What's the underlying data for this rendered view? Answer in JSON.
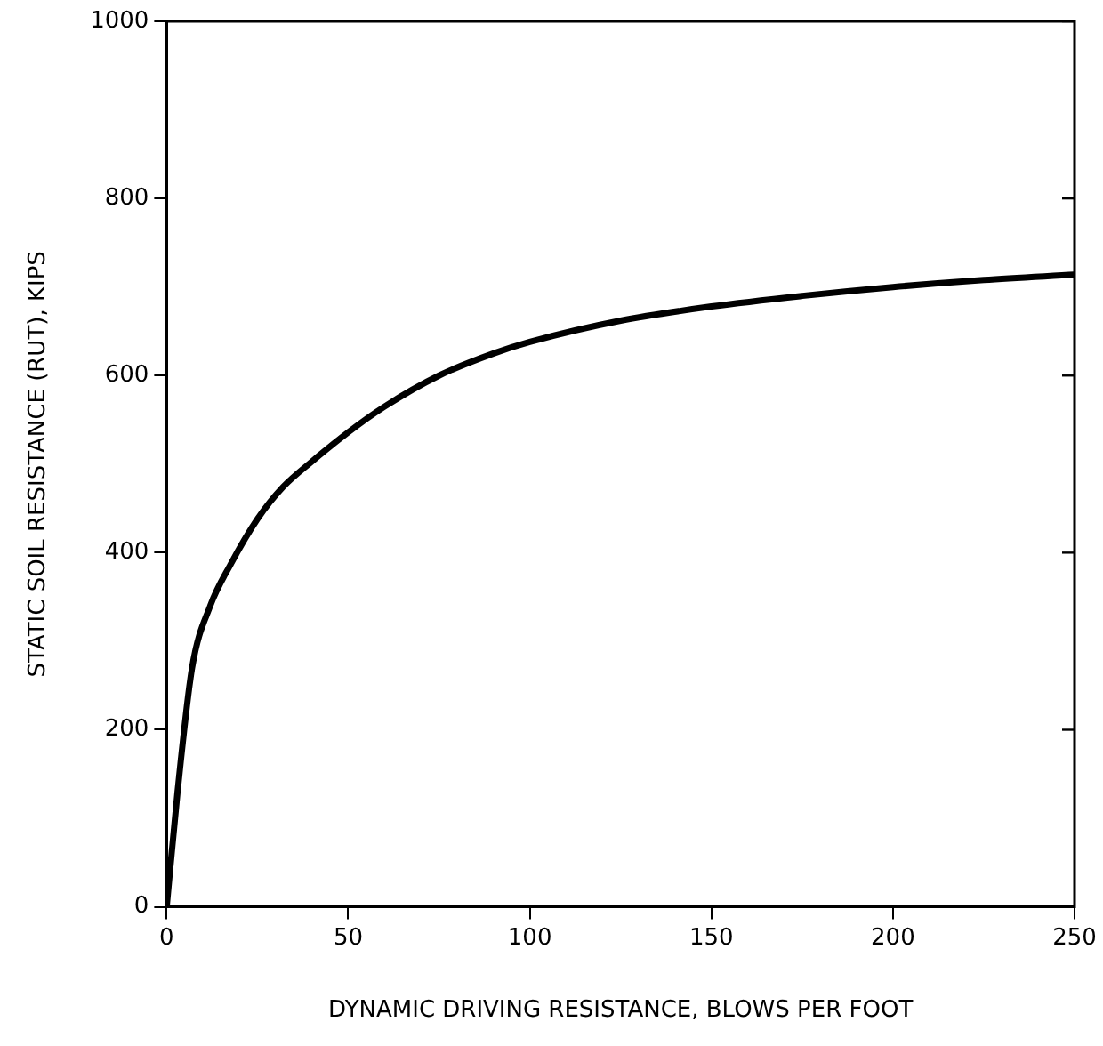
{
  "chart_data": {
    "type": "line",
    "xlabel": "DYNAMIC DRIVING RESISTANCE, BLOWS PER FOOT",
    "ylabel": "STATIC SOIL RESISTANCE (RUT), KIPS",
    "x": [
      0,
      3,
      7,
      12,
      17.5,
      25,
      32,
      40,
      50,
      60,
      75,
      90,
      100,
      125,
      150,
      175,
      200,
      225,
      250
    ],
    "series": [
      {
        "color": "#000000",
        "values": [
          0,
          130,
          270,
          340,
          386,
          438,
          474,
          503,
          536,
          565,
          600,
          625,
          638,
          662,
          678,
          690,
          700,
          708,
          714
        ]
      }
    ],
    "xlim": [
      0,
      250
    ],
    "xticks": [
      0,
      50,
      100,
      150,
      200,
      250
    ],
    "ylim": [
      0,
      1000
    ],
    "yticks": [
      0,
      200,
      400,
      600,
      800,
      1000
    ],
    "grid": false,
    "legend": false,
    "marker": "none",
    "line_style": "solid"
  }
}
